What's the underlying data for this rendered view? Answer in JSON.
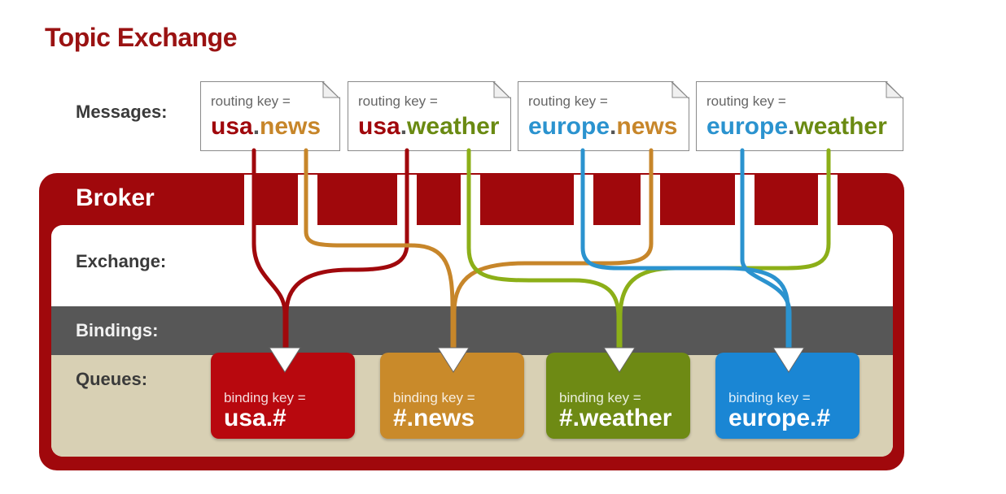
{
  "title": "Topic Exchange",
  "labels": {
    "messages": "Messages:",
    "broker": "Broker",
    "exchange": "Exchange:",
    "bindings": "Bindings:",
    "queues": "Queues:"
  },
  "messages": [
    {
      "caption": "routing key =",
      "part1": "usa",
      "dot": ".",
      "part2": "news"
    },
    {
      "caption": "routing key =",
      "part1": "usa",
      "dot": ".",
      "part2": "weather"
    },
    {
      "caption": "routing key =",
      "part1": "europe",
      "dot": ".",
      "part2": "news"
    },
    {
      "caption": "routing key =",
      "part1": "europe",
      "dot": ".",
      "part2": "weather"
    }
  ],
  "queues": [
    {
      "caption": "binding key =",
      "key": "usa.#"
    },
    {
      "caption": "binding key =",
      "key": "#.news"
    },
    {
      "caption": "binding key =",
      "key": "#.weather"
    },
    {
      "caption": "binding key =",
      "key": "europe.#"
    }
  ],
  "colors": {
    "title": "#9a1212",
    "broker": "#a0080c",
    "usa": "#a0080c",
    "news": "#c7862a",
    "weather": "#6a8a12",
    "europe": "#2b93cf",
    "queue_usa": "#b8080e",
    "queue_news": "#c98a2a",
    "queue_weather": "#6e8a14",
    "queue_europe": "#1a86d4",
    "bindings_band": "#575757",
    "queues_band": "#d8d0b4"
  }
}
